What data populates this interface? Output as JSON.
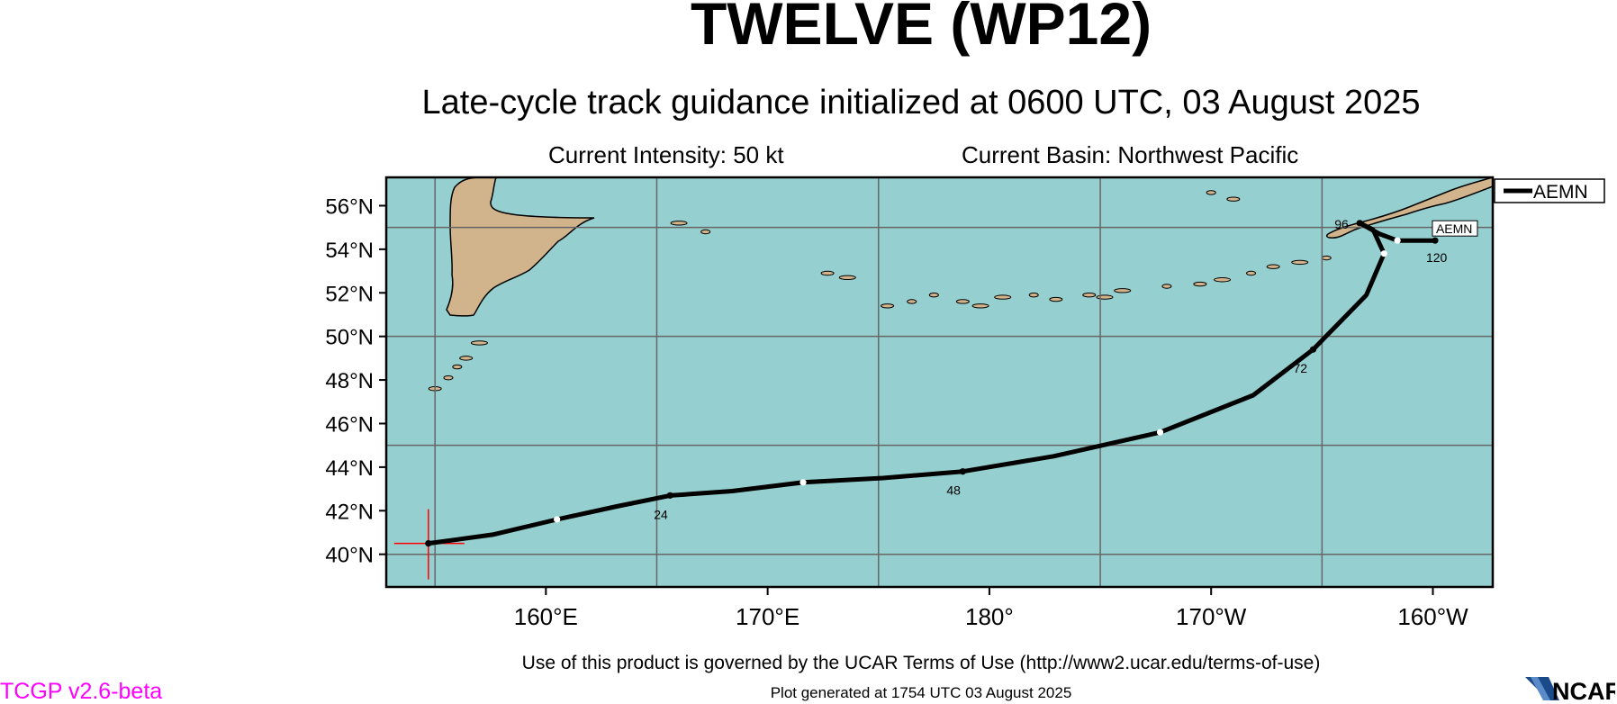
{
  "header": {
    "title": "TWELVE (WP12)",
    "subtitle": "Late-cycle track guidance initialized at 0600 UTC, 03 August 2025",
    "intensity": "Current Intensity: 50 kt",
    "basin": "Current Basin: Northwest Pacific"
  },
  "map": {
    "projection": "Cylindrical Equidistant",
    "lon_range": [
      152.8,
      202.7
    ],
    "lat_range": [
      38.5,
      57.3
    ],
    "grid_lons": [
      155,
      165,
      175,
      185,
      195
    ],
    "grid_lats": [
      40,
      45,
      50,
      55
    ],
    "colors": {
      "ocean": "#96cfcf",
      "land": "#d2b48c",
      "grid": "#666666",
      "track": "#000000",
      "marker": "#ff0000"
    },
    "lat_tick_labels": [
      {
        "lat": 56,
        "label": "56°N"
      },
      {
        "lat": 54,
        "label": "54°N"
      },
      {
        "lat": 52,
        "label": "52°N"
      },
      {
        "lat": 50,
        "label": "50°N"
      },
      {
        "lat": 48,
        "label": "48°N"
      },
      {
        "lat": 46,
        "label": "46°N"
      },
      {
        "lat": 44,
        "label": "44°N"
      },
      {
        "lat": 42,
        "label": "42°N"
      },
      {
        "lat": 40,
        "label": "40°N"
      }
    ],
    "lon_tick_labels": [
      {
        "lon": 160,
        "label": "160°E"
      },
      {
        "lon": 170,
        "label": "170°E"
      },
      {
        "lon": 180,
        "label": "180°"
      },
      {
        "lon": 190,
        "label": "170°W"
      },
      {
        "lon": 200,
        "label": "160°W"
      }
    ],
    "current_position": {
      "lon": 154.7,
      "lat": 40.5
    },
    "track": {
      "name": "AEMN",
      "points": [
        {
          "lon": 154.7,
          "lat": 40.5,
          "tau": 0
        },
        {
          "lon": 157.6,
          "lat": 40.9,
          "tau": 6
        },
        {
          "lon": 160.5,
          "lat": 41.6,
          "tau": 12
        },
        {
          "lon": 163.2,
          "lat": 42.2,
          "tau": 18
        },
        {
          "lon": 165.6,
          "lat": 42.7,
          "tau": 24
        },
        {
          "lon": 168.4,
          "lat": 42.9,
          "tau": 30
        },
        {
          "lon": 171.6,
          "lat": 43.3,
          "tau": 36
        },
        {
          "lon": 175.2,
          "lat": 43.5,
          "tau": 42
        },
        {
          "lon": 178.8,
          "lat": 43.8,
          "tau": 48
        },
        {
          "lon": 182.9,
          "lat": 44.5,
          "tau": 54
        },
        {
          "lon": 187.7,
          "lat": 45.6,
          "tau": 60
        },
        {
          "lon": 191.9,
          "lat": 47.3,
          "tau": 66
        },
        {
          "lon": 194.6,
          "lat": 49.4,
          "tau": 72
        },
        {
          "lon": 197.0,
          "lat": 51.9,
          "tau": 78
        },
        {
          "lon": 197.8,
          "lat": 53.8,
          "tau": 84
        },
        {
          "lon": 197.3,
          "lat": 54.9,
          "tau": 90
        },
        {
          "lon": 196.7,
          "lat": 55.2,
          "tau": 96
        },
        {
          "lon": 197.6,
          "lat": 54.7,
          "tau": 102
        },
        {
          "lon": 198.4,
          "lat": 54.4,
          "tau": 108
        },
        {
          "lon": 199.4,
          "lat": 54.4,
          "tau": 114
        },
        {
          "lon": 200.1,
          "lat": 54.4,
          "tau": 120
        }
      ],
      "tau_labels": [
        "24",
        "48",
        "72",
        "96",
        "120"
      ],
      "end_label": "AEMN"
    },
    "legend": {
      "entries": [
        "AEMN"
      ]
    }
  },
  "footer": {
    "terms": "Use of this product is governed by the UCAR Terms of Use (http://www2.ucar.edu/terms-of-use)",
    "generated": "Plot generated at 1754 UTC   03 August 2025",
    "version": "TCGP v2.6-beta",
    "logo_text": "NCAR"
  }
}
